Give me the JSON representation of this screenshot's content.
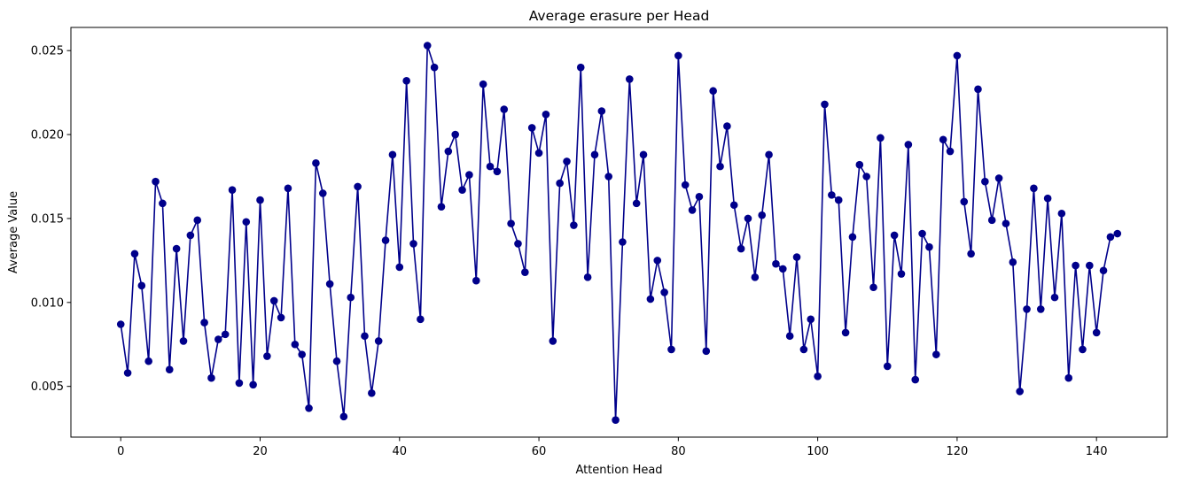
{
  "chart_data": {
    "type": "line",
    "title": "Average erasure per Head",
    "xlabel": "Attention Head",
    "ylabel": "Average Value",
    "xlim": [
      -7.15,
      150.15
    ],
    "ylim": [
      0.00198,
      0.02638
    ],
    "xticks": [
      0,
      20,
      40,
      60,
      80,
      100,
      120,
      140
    ],
    "xtick_labels": [
      "0",
      "20",
      "40",
      "60",
      "80",
      "100",
      "120",
      "140"
    ],
    "yticks": [
      0.005,
      0.01,
      0.015,
      0.02,
      0.025
    ],
    "ytick_labels": [
      "0.005",
      "0.010",
      "0.015",
      "0.020",
      "0.025"
    ],
    "grid": false,
    "marker": "circle",
    "color": "#00008b",
    "series": [
      {
        "x": [
          0,
          1,
          2,
          3,
          4,
          5,
          6,
          7,
          8,
          9,
          10,
          11,
          12,
          13,
          14,
          15,
          16,
          17,
          18,
          19,
          20,
          21,
          22,
          23,
          24,
          25,
          26,
          27,
          28,
          29,
          30,
          31,
          32,
          33,
          34,
          35,
          36,
          37,
          38,
          39,
          40,
          41,
          42,
          43,
          44,
          45,
          46,
          47,
          48,
          49,
          50,
          51,
          52,
          53,
          54,
          55,
          56,
          57,
          58,
          59,
          60,
          61,
          62,
          63,
          64,
          65,
          66,
          67,
          68,
          69,
          70,
          71,
          72,
          73,
          74,
          75,
          76,
          77,
          78,
          79,
          80,
          81,
          82,
          83,
          84,
          85,
          86,
          87,
          88,
          89,
          90,
          91,
          92,
          93,
          94,
          95,
          96,
          97,
          98,
          99,
          100,
          101,
          102,
          103,
          104,
          105,
          106,
          107,
          108,
          109,
          110,
          111,
          112,
          113,
          114,
          115,
          116,
          117,
          118,
          119,
          120,
          121,
          122,
          123,
          124,
          125,
          126,
          127,
          128,
          129,
          130,
          131,
          132,
          133,
          134,
          135,
          136,
          137,
          138,
          139,
          140,
          141,
          142,
          143
        ],
        "values": [
          0.0087,
          0.0058,
          0.0129,
          0.011,
          0.0065,
          0.0172,
          0.0159,
          0.006,
          0.0132,
          0.0077,
          0.014,
          0.0149,
          0.0088,
          0.0055,
          0.0078,
          0.0081,
          0.0167,
          0.0052,
          0.0148,
          0.0051,
          0.0161,
          0.0068,
          0.0101,
          0.0091,
          0.0168,
          0.0075,
          0.0069,
          0.0037,
          0.0183,
          0.0165,
          0.0111,
          0.0065,
          0.0032,
          0.0103,
          0.0169,
          0.008,
          0.0046,
          0.0077,
          0.0137,
          0.0188,
          0.0121,
          0.0232,
          0.0135,
          0.009,
          0.0253,
          0.024,
          0.0157,
          0.019,
          0.02,
          0.0167,
          0.0176,
          0.0113,
          0.023,
          0.0181,
          0.0178,
          0.0215,
          0.0147,
          0.0135,
          0.0118,
          0.0204,
          0.0189,
          0.0212,
          0.0077,
          0.0171,
          0.0184,
          0.0146,
          0.024,
          0.0115,
          0.0188,
          0.0214,
          0.0175,
          0.003,
          0.0136,
          0.0233,
          0.0159,
          0.0188,
          0.0102,
          0.0125,
          0.0106,
          0.0072,
          0.0247,
          0.017,
          0.0155,
          0.0163,
          0.0071,
          0.0226,
          0.0181,
          0.0205,
          0.0158,
          0.0132,
          0.015,
          0.0115,
          0.0152,
          0.0188,
          0.0123,
          0.012,
          0.008,
          0.0127,
          0.0072,
          0.009,
          0.0056,
          0.0218,
          0.0164,
          0.0161,
          0.0082,
          0.0139,
          0.0182,
          0.0175,
          0.0109,
          0.0198,
          0.0062,
          0.014,
          0.0117,
          0.0194,
          0.0054,
          0.0141,
          0.0133,
          0.0069,
          0.0197,
          0.019,
          0.0247,
          0.016,
          0.0129,
          0.0227,
          0.0172,
          0.0149,
          0.0174,
          0.0147,
          0.0124,
          0.0047,
          0.0096,
          0.0168,
          0.0096,
          0.0162,
          0.0103,
          0.0153,
          0.0055,
          0.0122,
          0.0072,
          0.0122,
          0.0082,
          0.0119,
          0.0139,
          0.0141
        ]
      }
    ]
  }
}
